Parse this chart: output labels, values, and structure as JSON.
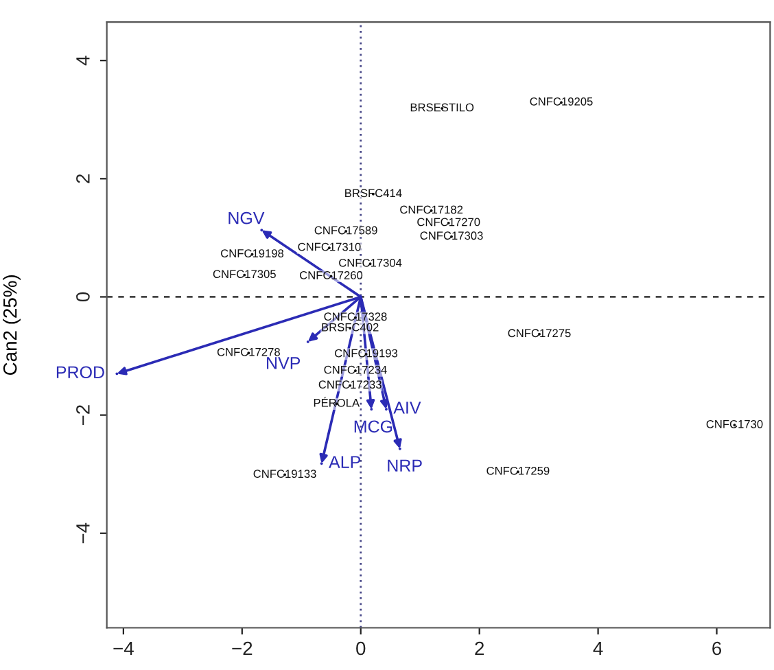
{
  "chart_data": {
    "type": "scatter",
    "ylabel": "Can2 (25%)",
    "xlim": [
      -4.28,
      6.9
    ],
    "ylim": [
      -5.6,
      4.65
    ],
    "xticks": [
      -4,
      -2,
      0,
      2,
      4,
      6
    ],
    "yticks": [
      -4,
      -2,
      0,
      2,
      4
    ],
    "grid": false,
    "series": [
      {
        "color": "#111111",
        "marker": "circle",
        "x": [
          1.37,
          3.38,
          0.21,
          1.19,
          1.48,
          1.53,
          -0.25,
          -1.83,
          -0.53,
          0.16,
          -1.96,
          -0.5,
          -0.09,
          -0.18,
          -1.89,
          0.09,
          -0.09,
          -0.18,
          -0.41,
          -1.28,
          3.01,
          2.65,
          6.3
        ],
        "values": [
          3.19,
          3.29,
          1.74,
          1.46,
          1.25,
          1.02,
          1.11,
          0.72,
          0.83,
          0.56,
          0.37,
          0.35,
          -0.35,
          -0.53,
          -0.95,
          -0.97,
          -1.25,
          -1.5,
          -1.81,
          -3.01,
          -0.63,
          -2.96,
          -2.17
        ],
        "value_labels": [
          "BRSESTILO",
          "CNFC19205",
          "BRSFC414",
          "CNFC17182",
          "CNFC17270",
          "CNFC17303",
          "CNFC17589",
          "CNFC19198",
          "CNFC17310",
          "CNFC17304",
          "CNFC17305",
          "CNFC17260",
          "CNFC17328",
          "BRSFC402",
          "CNFC17278",
          "CNFC19193",
          "CNFC17234",
          "CNFC17233",
          "PÉROLA",
          "CNFC19133",
          "CNFC17275",
          "CNFC17259",
          "CNFC1730"
        ]
      },
      {
        "color": "#2b2bb5",
        "marker": "circle",
        "x": [
          -1.67,
          -4.11,
          -0.89,
          -0.66,
          0.18,
          0.43,
          0.66
        ],
        "values": [
          1.13,
          -1.3,
          -0.76,
          -2.82,
          -1.9,
          -1.9,
          -2.57
        ]
      }
    ],
    "annotations": [
      {
        "text": "NGV",
        "x": -1.67,
        "y": 1.13
      },
      {
        "text": "PROD",
        "x": -4.11,
        "y": -1.3
      },
      {
        "text": "NVP",
        "x": -0.89,
        "y": -0.76
      },
      {
        "text": "ALP",
        "x": -0.66,
        "y": -2.82
      },
      {
        "text": "MCG",
        "x": 0.18,
        "y": -1.9
      },
      {
        "text": "AIV",
        "x": 0.43,
        "y": -1.9
      },
      {
        "text": "NRP",
        "x": 0.66,
        "y": -2.57
      }
    ],
    "ref_lines": [
      {
        "axis": "x",
        "value": 0,
        "line_style": "dotted",
        "color": "#4a4a8a"
      },
      {
        "axis": "y",
        "value": 0,
        "line_style": "dashed",
        "color": "#444444"
      }
    ]
  }
}
